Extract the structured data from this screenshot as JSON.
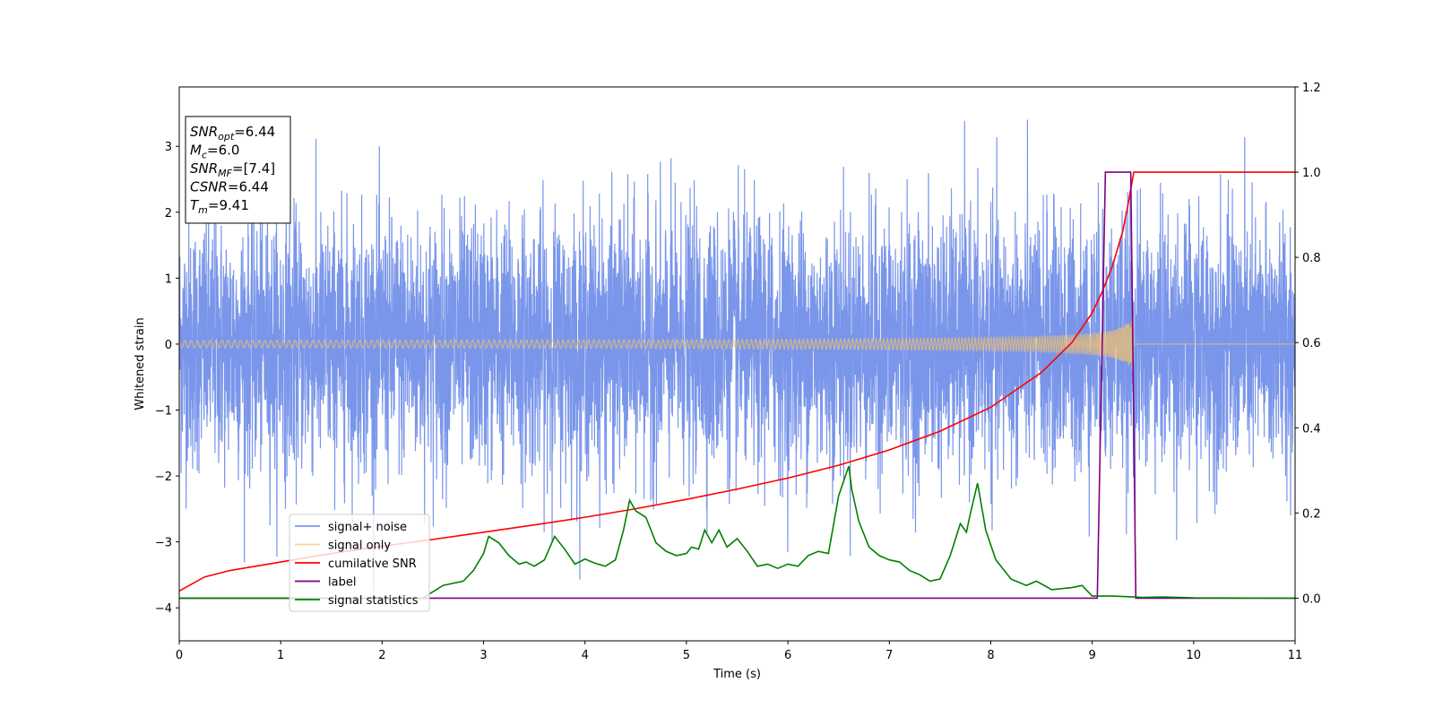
{
  "chart_data": {
    "type": "line",
    "xlabel": "Time (s)",
    "ylabel": "Whitened strain",
    "xlim": [
      0,
      11
    ],
    "ylim_left": [
      -4.5,
      3.9
    ],
    "ylim_right": [
      -0.1,
      1.2
    ],
    "x_ticks": [
      0,
      1,
      2,
      3,
      4,
      5,
      6,
      7,
      8,
      9,
      10,
      11
    ],
    "y_ticks_left": [
      -4,
      -3,
      -2,
      -1,
      0,
      1,
      2,
      3
    ],
    "y_ticks_right": [
      0.0,
      0.2,
      0.4,
      0.6,
      0.8,
      1.0,
      1.2
    ],
    "x_tick_labels": [
      "0",
      "1",
      "2",
      "3",
      "4",
      "5",
      "6",
      "7",
      "8",
      "9",
      "10",
      "11"
    ],
    "y_tick_labels_left": [
      "−4",
      "−3",
      "−2",
      "−1",
      "0",
      "1",
      "2",
      "3"
    ],
    "y_tick_labels_right": [
      "0.0",
      "0.2",
      "0.4",
      "0.6",
      "0.8",
      "1.0",
      "1.2"
    ],
    "legend_position": "lower-left",
    "grid": false,
    "info_box": [
      {
        "symbol": "SNR",
        "sub": "opt",
        "value": "=6.44"
      },
      {
        "symbol": "M",
        "sub": "c",
        "value": "=6.0"
      },
      {
        "symbol": "SNR",
        "sub": "MF",
        "value": "=[7.4]"
      },
      {
        "symbol": "CSNR",
        "sub": "",
        "value": "=6.44"
      },
      {
        "symbol": "T",
        "sub": "m",
        "value": "=9.41"
      }
    ],
    "series": [
      {
        "name": "signal+ noise",
        "color": "#4169e1",
        "axis": "left",
        "kind": "noise",
        "sigma": 0.95,
        "end": 11.0
      },
      {
        "name": "signal only",
        "color": "#f5c26b",
        "axis": "left",
        "kind": "chirp",
        "t_merge": 9.41,
        "amplitude_at_start": 0.03,
        "amplitude_at_merge": 0.45
      },
      {
        "name": "cumilative SNR",
        "color": "#ff0000",
        "axis": "right",
        "x": [
          0,
          0.25,
          0.5,
          1,
          1.5,
          2,
          2.5,
          3,
          3.5,
          4,
          4.5,
          5,
          5.5,
          6,
          6.5,
          7,
          7.5,
          8,
          8.5,
          8.8,
          9.0,
          9.1,
          9.2,
          9.3,
          9.35,
          9.41,
          11
        ],
        "y": [
          0.017,
          0.05,
          0.065,
          0.085,
          0.105,
          0.122,
          0.138,
          0.155,
          0.172,
          0.19,
          0.21,
          0.232,
          0.256,
          0.282,
          0.312,
          0.348,
          0.392,
          0.448,
          0.53,
          0.6,
          0.67,
          0.72,
          0.78,
          0.86,
          0.92,
          1.0,
          1.0
        ]
      },
      {
        "name": "label",
        "color": "#800080",
        "axis": "right",
        "x": [
          0,
          9.05,
          9.13,
          9.38,
          9.43,
          11
        ],
        "y": [
          0,
          0,
          1,
          1,
          0,
          0
        ]
      },
      {
        "name": "signal statistics",
        "color": "#008000",
        "axis": "right",
        "x": [
          0,
          2.4,
          2.6,
          2.8,
          2.9,
          3.0,
          3.05,
          3.15,
          3.25,
          3.35,
          3.42,
          3.5,
          3.6,
          3.7,
          3.8,
          3.9,
          4.0,
          4.1,
          4.2,
          4.3,
          4.38,
          4.44,
          4.5,
          4.6,
          4.7,
          4.8,
          4.9,
          5.0,
          5.05,
          5.12,
          5.18,
          5.25,
          5.32,
          5.4,
          5.5,
          5.6,
          5.7,
          5.8,
          5.9,
          6.0,
          6.1,
          6.2,
          6.3,
          6.4,
          6.5,
          6.6,
          6.63,
          6.7,
          6.8,
          6.9,
          7.0,
          7.1,
          7.2,
          7.3,
          7.4,
          7.5,
          7.6,
          7.7,
          7.76,
          7.8,
          7.87,
          7.95,
          8.05,
          8.2,
          8.35,
          8.45,
          8.6,
          8.8,
          8.9,
          9.0,
          9.2,
          9.5,
          9.7,
          10,
          11
        ],
        "y": [
          0,
          0,
          0.03,
          0.04,
          0.065,
          0.105,
          0.145,
          0.13,
          0.1,
          0.08,
          0.085,
          0.075,
          0.09,
          0.145,
          0.115,
          0.08,
          0.092,
          0.082,
          0.075,
          0.09,
          0.16,
          0.23,
          0.205,
          0.19,
          0.13,
          0.11,
          0.1,
          0.105,
          0.12,
          0.115,
          0.16,
          0.13,
          0.16,
          0.12,
          0.14,
          0.11,
          0.075,
          0.08,
          0.07,
          0.08,
          0.075,
          0.1,
          0.11,
          0.105,
          0.24,
          0.31,
          0.255,
          0.18,
          0.12,
          0.1,
          0.09,
          0.085,
          0.065,
          0.055,
          0.04,
          0.045,
          0.1,
          0.175,
          0.155,
          0.2,
          0.27,
          0.16,
          0.09,
          0.045,
          0.03,
          0.04,
          0.02,
          0.025,
          0.03,
          0.005,
          0.005,
          0.002,
          0.003,
          0.001,
          0
        ]
      }
    ]
  }
}
